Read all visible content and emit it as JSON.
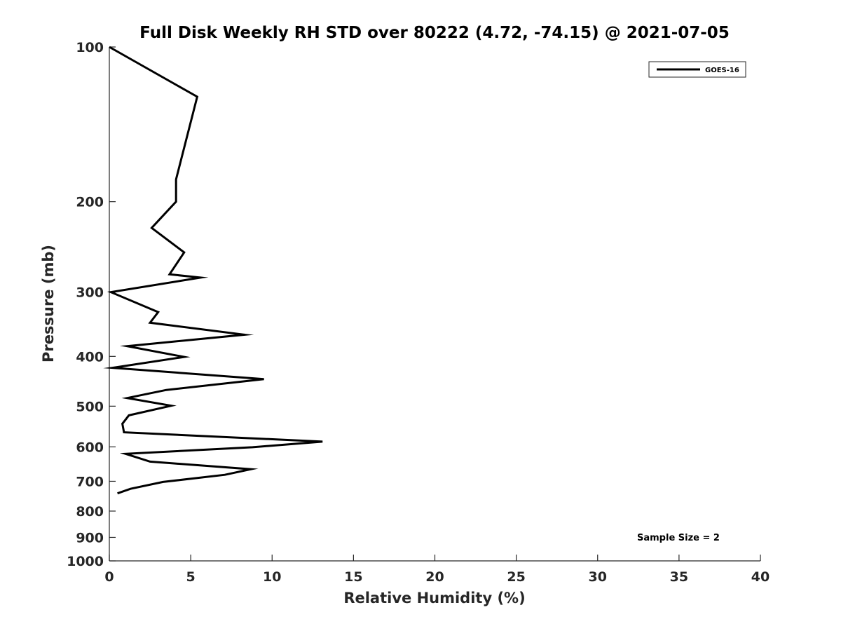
{
  "chart_data": {
    "type": "line",
    "title": "Full Disk Weekly RH STD over 80222 (4.72, -74.15) @ 2021-07-05",
    "xlabel": "Relative Humidity (%)",
    "ylabel": "Pressure (mb)",
    "xlim": [
      0,
      40
    ],
    "ylim": [
      100,
      1000
    ],
    "y_scale": "log",
    "y_inverted": true,
    "x_ticks": [
      0,
      5,
      10,
      15,
      20,
      25,
      30,
      35,
      40
    ],
    "x_tick_labels": [
      "0",
      "5",
      "10",
      "15",
      "20",
      "25",
      "30",
      "35",
      "40"
    ],
    "y_ticks": [
      100,
      200,
      300,
      400,
      500,
      600,
      700,
      800,
      900,
      1000
    ],
    "y_tick_labels": [
      "100",
      "200",
      "300",
      "400",
      "500",
      "600",
      "700",
      "800",
      "900",
      "1000"
    ],
    "grid": false,
    "legend_position": "top-right",
    "series": [
      {
        "name": "GOES-16",
        "color": "#000000",
        "points": [
          {
            "x": 0.0,
            "p": 100
          },
          {
            "x": 5.4,
            "p": 125
          },
          {
            "x": 4.1,
            "p": 181
          },
          {
            "x": 4.1,
            "p": 200
          },
          {
            "x": 2.6,
            "p": 225
          },
          {
            "x": 4.6,
            "p": 251
          },
          {
            "x": 3.7,
            "p": 277
          },
          {
            "x": 5.6,
            "p": 281
          },
          {
            "x": 0.1,
            "p": 300
          },
          {
            "x": 3.0,
            "p": 328
          },
          {
            "x": 2.5,
            "p": 344
          },
          {
            "x": 8.3,
            "p": 363
          },
          {
            "x": 1.1,
            "p": 382
          },
          {
            "x": 4.6,
            "p": 401
          },
          {
            "x": 0.2,
            "p": 421
          },
          {
            "x": 9.5,
            "p": 443
          },
          {
            "x": 3.5,
            "p": 465
          },
          {
            "x": 1.1,
            "p": 482
          },
          {
            "x": 3.8,
            "p": 499
          },
          {
            "x": 1.2,
            "p": 521
          },
          {
            "x": 0.8,
            "p": 541
          },
          {
            "x": 0.9,
            "p": 562
          },
          {
            "x": 13.1,
            "p": 586
          },
          {
            "x": 8.8,
            "p": 601
          },
          {
            "x": 1.0,
            "p": 619
          },
          {
            "x": 2.5,
            "p": 641
          },
          {
            "x": 8.7,
            "p": 663
          },
          {
            "x": 7.1,
            "p": 680
          },
          {
            "x": 3.3,
            "p": 702
          },
          {
            "x": 1.3,
            "p": 724
          },
          {
            "x": 0.5,
            "p": 739
          }
        ]
      }
    ],
    "annotations": [
      {
        "text": "Sample Size = 2"
      }
    ]
  }
}
